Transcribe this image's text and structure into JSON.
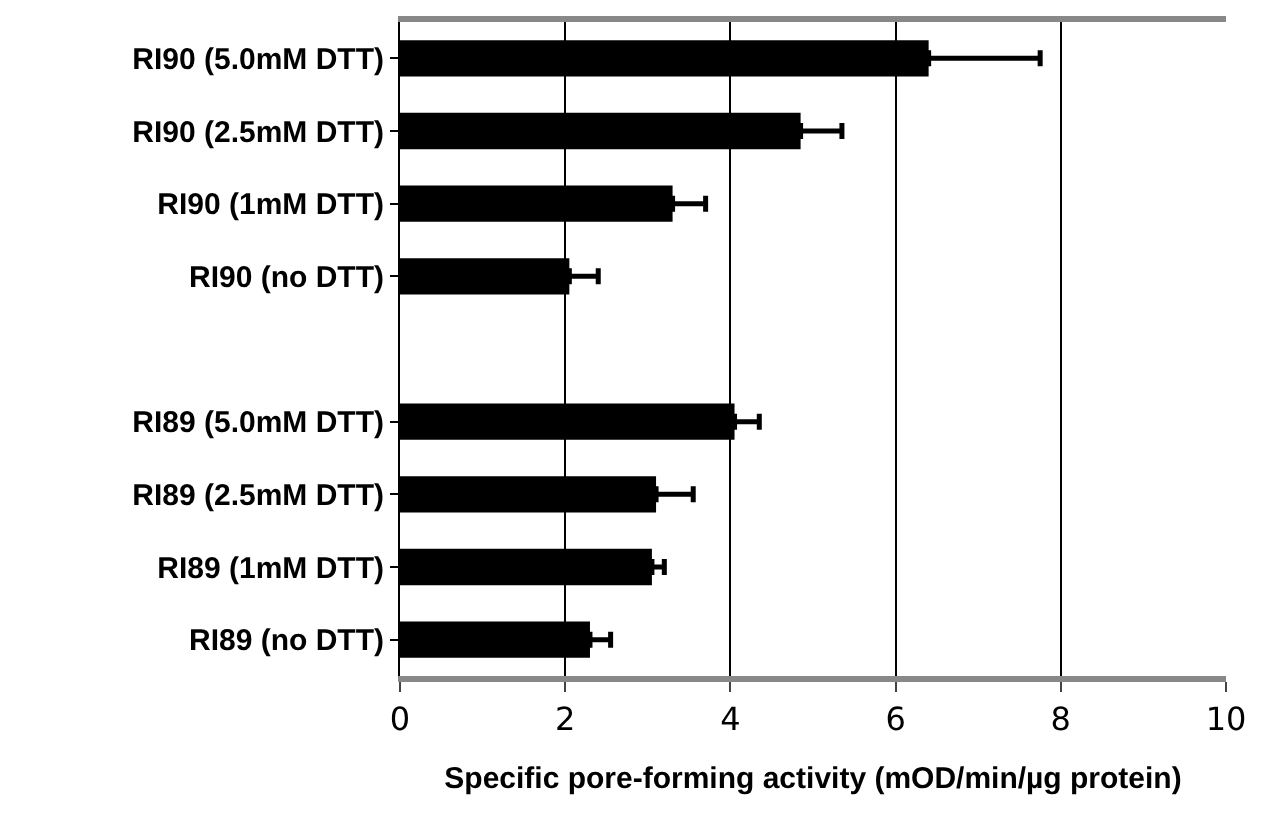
{
  "chart_data": {
    "type": "bar",
    "orientation": "horizontal",
    "xlabel": "Specific pore-forming activity (mOD/min/µg protein)",
    "categories": [
      "RI90 (5.0mM DTT)",
      "RI90 (2.5mM DTT)",
      "RI90 (1mM DTT)",
      "RI90 (no DTT)",
      null,
      "RI89 (5.0mM DTT)",
      "RI89 (2.5mM DTT)",
      "RI89 (1mM DTT)",
      "RI89 (no DTT)"
    ],
    "values": [
      6.4,
      4.85,
      3.3,
      2.05,
      null,
      4.05,
      3.1,
      3.05,
      2.3
    ],
    "errors": [
      [
        6.4,
        7.75
      ],
      [
        4.85,
        5.35
      ],
      [
        3.3,
        3.7
      ],
      [
        2.05,
        2.4
      ],
      null,
      [
        4.05,
        4.35
      ],
      [
        3.1,
        3.55
      ],
      [
        3.05,
        3.2
      ],
      [
        2.3,
        2.55
      ]
    ],
    "color": "#000000",
    "xlim": [
      0,
      10
    ],
    "xticks": [
      0,
      2,
      4,
      6,
      8,
      10
    ],
    "grid": "x"
  }
}
